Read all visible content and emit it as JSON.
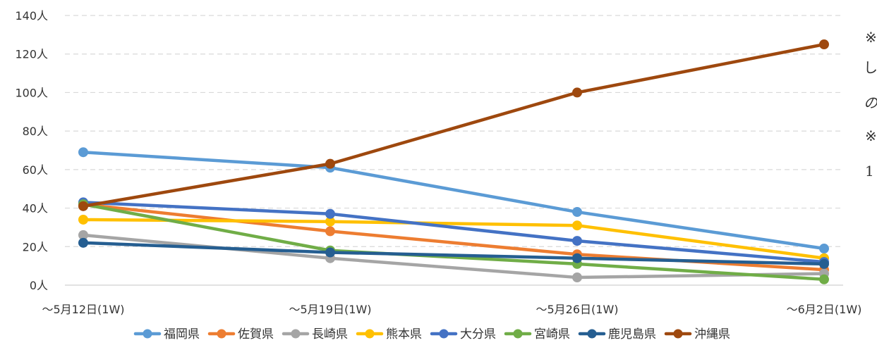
{
  "chart_data": {
    "type": "line",
    "categories": [
      "～5月12日(1W)",
      "～5月19日(1W)",
      "～5月26日(1W)",
      "～6月2日(1W)"
    ],
    "ylim": [
      0,
      140
    ],
    "yticks": [
      0,
      20,
      40,
      60,
      80,
      100,
      120,
      140
    ],
    "y_tick_suffix": "人",
    "grid": true,
    "legend_position": "bottom",
    "series": [
      {
        "name": "福岡県",
        "color": "#5B9BD5",
        "values": [
          69,
          61,
          38,
          19
        ]
      },
      {
        "name": "佐賀県",
        "color": "#ED7D31",
        "values": [
          42,
          28,
          16,
          8
        ]
      },
      {
        "name": "長崎県",
        "color": "#A5A5A5",
        "values": [
          26,
          14,
          4,
          6
        ]
      },
      {
        "name": "熊本県",
        "color": "#FFC000",
        "values": [
          34,
          33,
          31,
          14
        ]
      },
      {
        "name": "大分県",
        "color": "#4472C4",
        "values": [
          43,
          37,
          23,
          12
        ]
      },
      {
        "name": "宮崎県",
        "color": "#70AD47",
        "values": [
          42,
          18,
          11,
          3
        ]
      },
      {
        "name": "鹿児島県",
        "color": "#255E91",
        "values": [
          22,
          17,
          14,
          11
        ]
      },
      {
        "name": "沖縄県",
        "color": "#9E480E",
        "values": [
          41,
          63,
          100,
          125
        ]
      }
    ]
  },
  "side_notes": [
    "※",
    "し",
    "の",
    "※",
    "1"
  ]
}
